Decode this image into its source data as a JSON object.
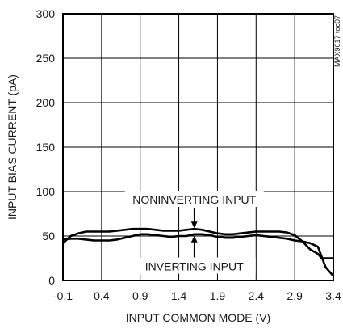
{
  "chart_data": {
    "type": "line",
    "title": "",
    "xlabel": "INPUT COMMON MODE (V)",
    "ylabel": "INPUT BIAS CURRENT (pA)",
    "xlim": [
      -0.1,
      3.4
    ],
    "ylim": [
      0,
      300
    ],
    "x_ticks": [
      "-0.1",
      "0.4",
      "0.9",
      "1.4",
      "1.9",
      "2.4",
      "2.9",
      "3.4"
    ],
    "y_ticks": [
      "0",
      "50",
      "100",
      "150",
      "200",
      "250",
      "300"
    ],
    "grid": true,
    "figure_code": "MAX9617 toc07",
    "annotations": [
      {
        "text": "NONINVERTING INPUT",
        "x": 1.6,
        "y": 90
      },
      {
        "text": "INVERTING INPUT",
        "x": 1.6,
        "y": 15
      }
    ],
    "series": [
      {
        "name": "NONINVERTING INPUT",
        "x": [
          -0.1,
          0.0,
          0.1,
          0.2,
          0.3,
          0.4,
          0.5,
          0.6,
          0.7,
          0.8,
          0.9,
          1.0,
          1.1,
          1.2,
          1.3,
          1.4,
          1.5,
          1.6,
          1.7,
          1.8,
          1.9,
          2.0,
          2.1,
          2.2,
          2.3,
          2.4,
          2.5,
          2.6,
          2.7,
          2.8,
          2.9,
          3.0,
          3.1,
          3.2,
          3.25,
          3.3,
          3.4
        ],
        "y": [
          42,
          50,
          53,
          55,
          55,
          55,
          55,
          56,
          57,
          58,
          58,
          58,
          57,
          56,
          56,
          56,
          57,
          58,
          57,
          55,
          53,
          52,
          52,
          53,
          54,
          55,
          55,
          55,
          55,
          54,
          51,
          44,
          35,
          30,
          25,
          25,
          25
        ]
      },
      {
        "name": "INVERTING INPUT",
        "x": [
          -0.1,
          0.0,
          0.1,
          0.2,
          0.3,
          0.4,
          0.5,
          0.6,
          0.7,
          0.8,
          0.9,
          1.0,
          1.1,
          1.2,
          1.3,
          1.4,
          1.5,
          1.6,
          1.7,
          1.8,
          1.9,
          2.0,
          2.1,
          2.2,
          2.3,
          2.4,
          2.5,
          2.6,
          2.7,
          2.8,
          2.9,
          3.0,
          3.1,
          3.2,
          3.3,
          3.4
        ],
        "y": [
          46,
          47,
          47,
          46,
          45,
          45,
          45,
          46,
          48,
          50,
          52,
          52,
          51,
          50,
          49,
          50,
          50,
          52,
          52,
          51,
          49,
          48,
          48,
          49,
          50,
          51,
          50,
          49,
          48,
          47,
          45,
          44,
          42,
          38,
          15,
          5
        ]
      }
    ]
  }
}
